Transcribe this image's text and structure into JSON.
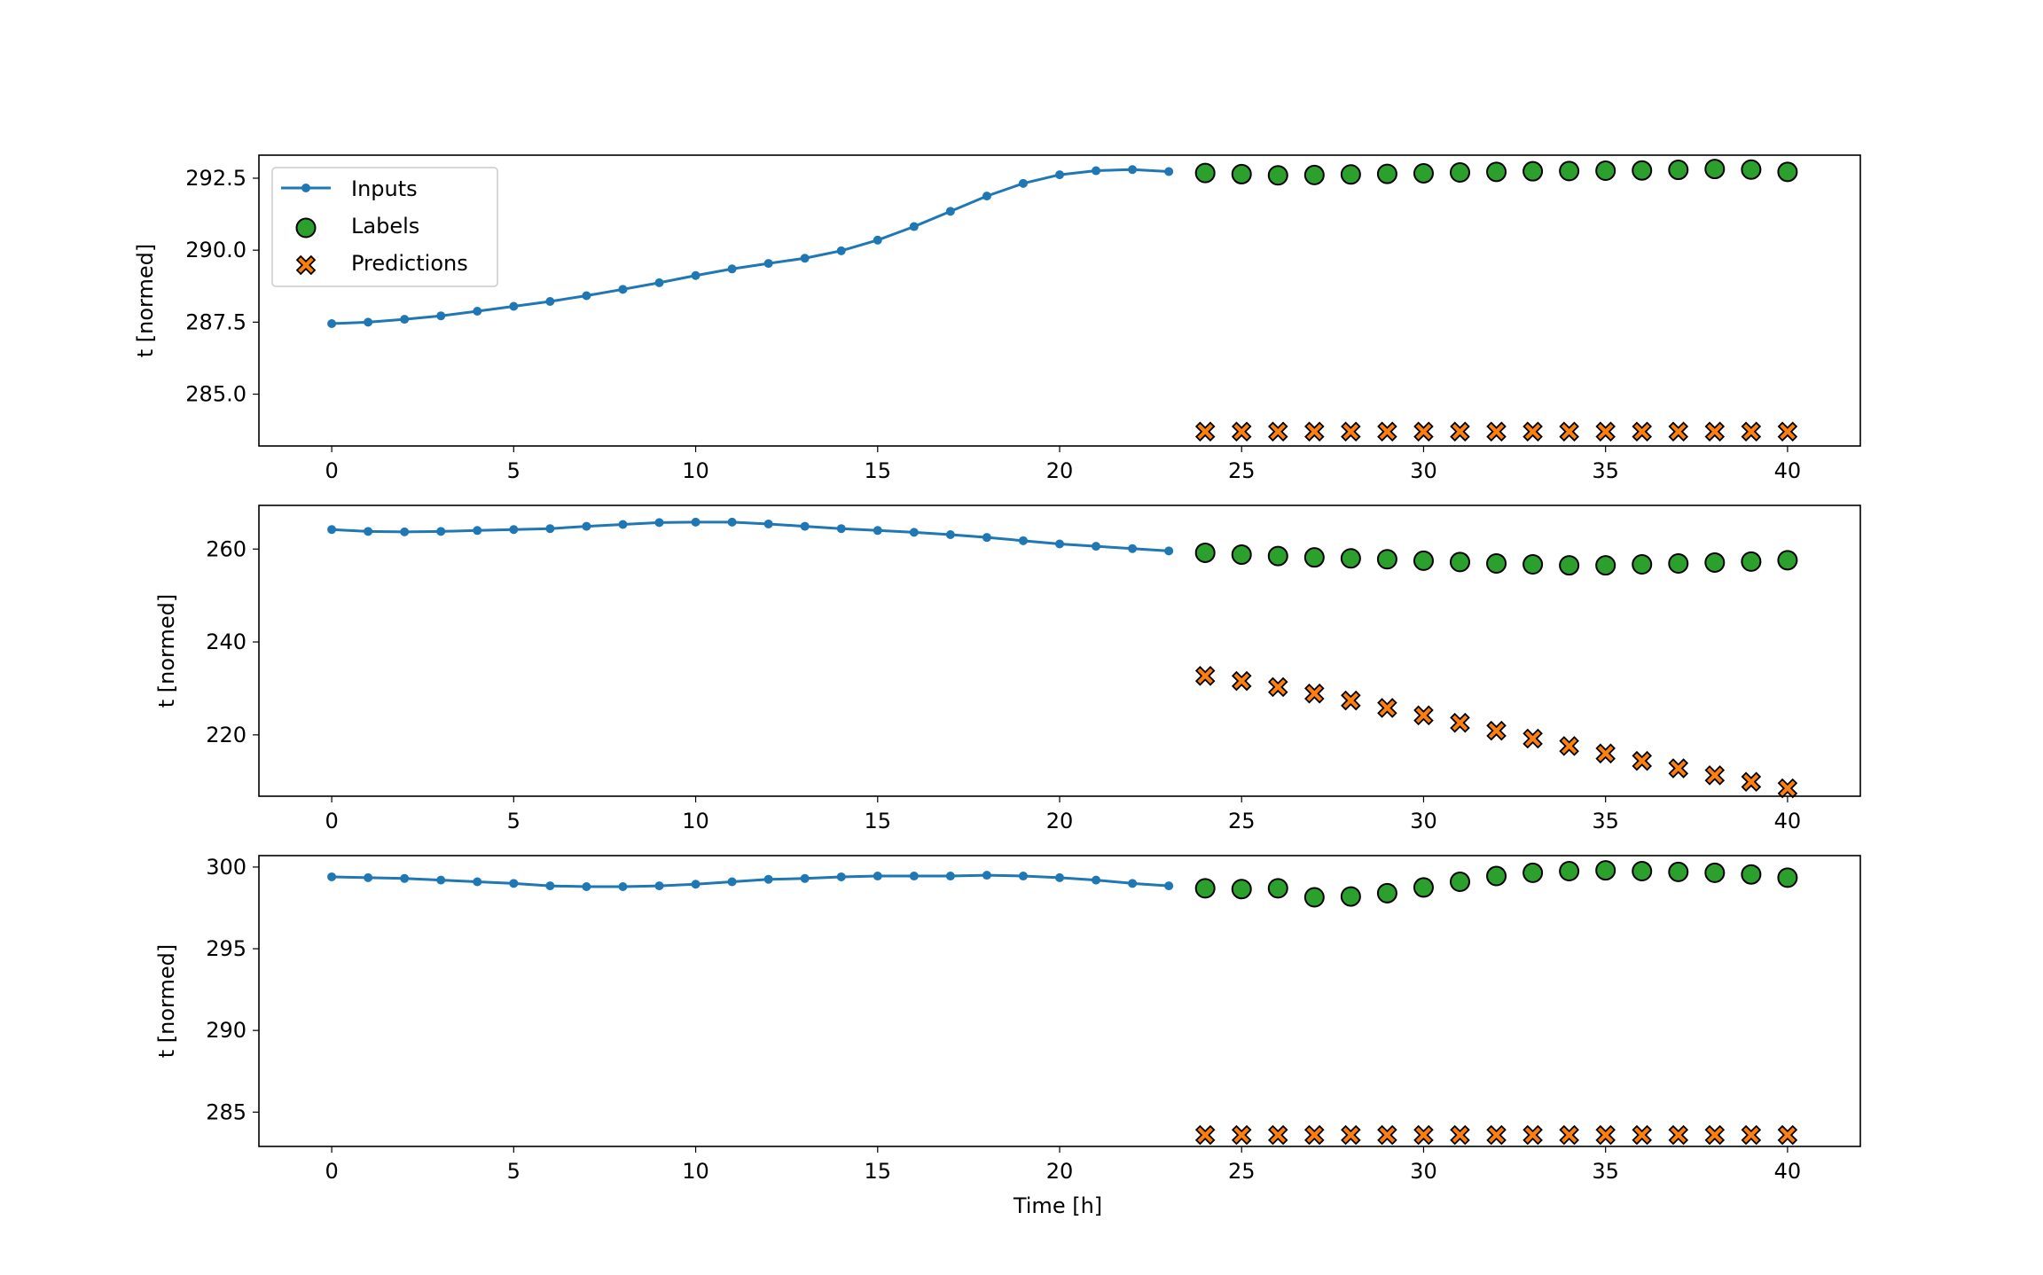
{
  "figure": {
    "xlabel": "Time [h]",
    "legend": {
      "location": "upper-left of first panel",
      "entries": [
        {
          "label": "Inputs",
          "marker": "line-dot"
        },
        {
          "label": "Labels",
          "marker": "circle"
        },
        {
          "label": "Predictions",
          "marker": "x-cross"
        }
      ]
    }
  },
  "colors": {
    "inputs": "#1f77b4",
    "labels": "#2ca02c",
    "predictions": "#ff7f0e",
    "edge": "#000000"
  },
  "chart_data": [
    {
      "type": "line",
      "ylabel": "t [normed]",
      "xlim": [
        -2,
        42
      ],
      "ylim": [
        283.2,
        293.3
      ],
      "xticks": [
        0,
        5,
        10,
        15,
        20,
        25,
        30,
        35,
        40
      ],
      "yticks": [
        285.0,
        287.5,
        290.0,
        292.5
      ],
      "ytick_labels": [
        "285.0",
        "287.5",
        "290.0",
        "292.5"
      ],
      "inputs": {
        "name": "Inputs",
        "x": [
          0,
          1,
          2,
          3,
          4,
          5,
          6,
          7,
          8,
          9,
          10,
          11,
          12,
          13,
          14,
          15,
          16,
          17,
          18,
          19,
          20,
          21,
          22,
          23
        ],
        "y": [
          287.45,
          287.5,
          287.6,
          287.72,
          287.88,
          288.05,
          288.22,
          288.42,
          288.64,
          288.87,
          289.12,
          289.35,
          289.54,
          289.72,
          289.98,
          290.35,
          290.82,
          291.35,
          291.88,
          292.32,
          292.62,
          292.76,
          292.8,
          292.73
        ]
      },
      "labels": {
        "name": "Labels",
        "x": [
          24,
          25,
          26,
          27,
          28,
          29,
          30,
          31,
          32,
          33,
          34,
          35,
          36,
          37,
          38,
          39,
          40
        ],
        "y": [
          292.68,
          292.64,
          292.6,
          292.61,
          292.63,
          292.65,
          292.67,
          292.7,
          292.72,
          292.74,
          292.75,
          292.76,
          292.77,
          292.79,
          292.82,
          292.8,
          292.72
        ]
      },
      "predictions": {
        "name": "Predictions",
        "x": [
          24,
          25,
          26,
          27,
          28,
          29,
          30,
          31,
          32,
          33,
          34,
          35,
          36,
          37,
          38,
          39,
          40
        ],
        "y": [
          283.7,
          283.7,
          283.7,
          283.7,
          283.7,
          283.7,
          283.7,
          283.7,
          283.7,
          283.7,
          283.7,
          283.7,
          283.7,
          283.7,
          283.7,
          283.7,
          283.7
        ]
      }
    },
    {
      "type": "line",
      "ylabel": "t [normed]",
      "xlim": [
        -2,
        42
      ],
      "ylim": [
        206.8,
        269.4
      ],
      "xticks": [
        0,
        5,
        10,
        15,
        20,
        25,
        30,
        35,
        40
      ],
      "yticks": [
        220,
        240,
        260
      ],
      "ytick_labels": [
        "220",
        "240",
        "260"
      ],
      "inputs": {
        "name": "Inputs",
        "x": [
          0,
          1,
          2,
          3,
          4,
          5,
          6,
          7,
          8,
          9,
          10,
          11,
          12,
          13,
          14,
          15,
          16,
          17,
          18,
          19,
          20,
          21,
          22,
          23
        ],
        "y": [
          264.2,
          263.8,
          263.7,
          263.8,
          264.0,
          264.2,
          264.4,
          264.9,
          265.3,
          265.7,
          265.8,
          265.8,
          265.4,
          264.9,
          264.4,
          264.0,
          263.6,
          263.1,
          262.5,
          261.8,
          261.1,
          260.6,
          260.1,
          259.6
        ]
      },
      "labels": {
        "name": "Labels",
        "x": [
          24,
          25,
          26,
          27,
          28,
          29,
          30,
          31,
          32,
          33,
          34,
          35,
          36,
          37,
          38,
          39,
          40
        ],
        "y": [
          259.2,
          258.8,
          258.5,
          258.2,
          258.0,
          257.8,
          257.5,
          257.2,
          256.9,
          256.7,
          256.5,
          256.5,
          256.7,
          256.9,
          257.1,
          257.3,
          257.6
        ]
      },
      "predictions": {
        "name": "Predictions",
        "x": [
          24,
          25,
          26,
          27,
          28,
          29,
          30,
          31,
          32,
          33,
          34,
          35,
          36,
          37,
          38,
          39,
          40
        ],
        "y": [
          232.7,
          231.6,
          230.3,
          228.9,
          227.4,
          225.8,
          224.2,
          222.6,
          220.9,
          219.2,
          217.6,
          216.0,
          214.4,
          212.8,
          211.3,
          209.9,
          208.5
        ]
      }
    },
    {
      "type": "line",
      "ylabel": "t [normed]",
      "xlim": [
        -2,
        42
      ],
      "ylim": [
        282.9,
        300.7
      ],
      "xticks": [
        0,
        5,
        10,
        15,
        20,
        25,
        30,
        35,
        40
      ],
      "yticks": [
        285,
        290,
        295,
        300
      ],
      "ytick_labels": [
        "285",
        "290",
        "295",
        "300"
      ],
      "xlabel": "Time [h]",
      "inputs": {
        "name": "Inputs",
        "x": [
          0,
          1,
          2,
          3,
          4,
          5,
          6,
          7,
          8,
          9,
          10,
          11,
          12,
          13,
          14,
          15,
          16,
          17,
          18,
          19,
          20,
          21,
          22,
          23
        ],
        "y": [
          299.4,
          299.35,
          299.3,
          299.2,
          299.1,
          299.0,
          298.85,
          298.8,
          298.8,
          298.85,
          298.95,
          299.1,
          299.25,
          299.3,
          299.4,
          299.45,
          299.45,
          299.45,
          299.5,
          299.45,
          299.35,
          299.2,
          299.0,
          298.85
        ]
      },
      "labels": {
        "name": "Labels",
        "x": [
          24,
          25,
          26,
          27,
          28,
          29,
          30,
          31,
          32,
          33,
          34,
          35,
          36,
          37,
          38,
          39,
          40
        ],
        "y": [
          298.7,
          298.65,
          298.7,
          298.15,
          298.2,
          298.4,
          298.75,
          299.1,
          299.45,
          299.65,
          299.75,
          299.8,
          299.75,
          299.7,
          299.65,
          299.55,
          299.35
        ]
      },
      "predictions": {
        "name": "Predictions",
        "x": [
          24,
          25,
          26,
          27,
          28,
          29,
          30,
          31,
          32,
          33,
          34,
          35,
          36,
          37,
          38,
          39,
          40
        ],
        "y": [
          283.6,
          283.6,
          283.6,
          283.6,
          283.6,
          283.6,
          283.6,
          283.6,
          283.6,
          283.6,
          283.6,
          283.6,
          283.6,
          283.6,
          283.6,
          283.6,
          283.6
        ]
      }
    }
  ]
}
